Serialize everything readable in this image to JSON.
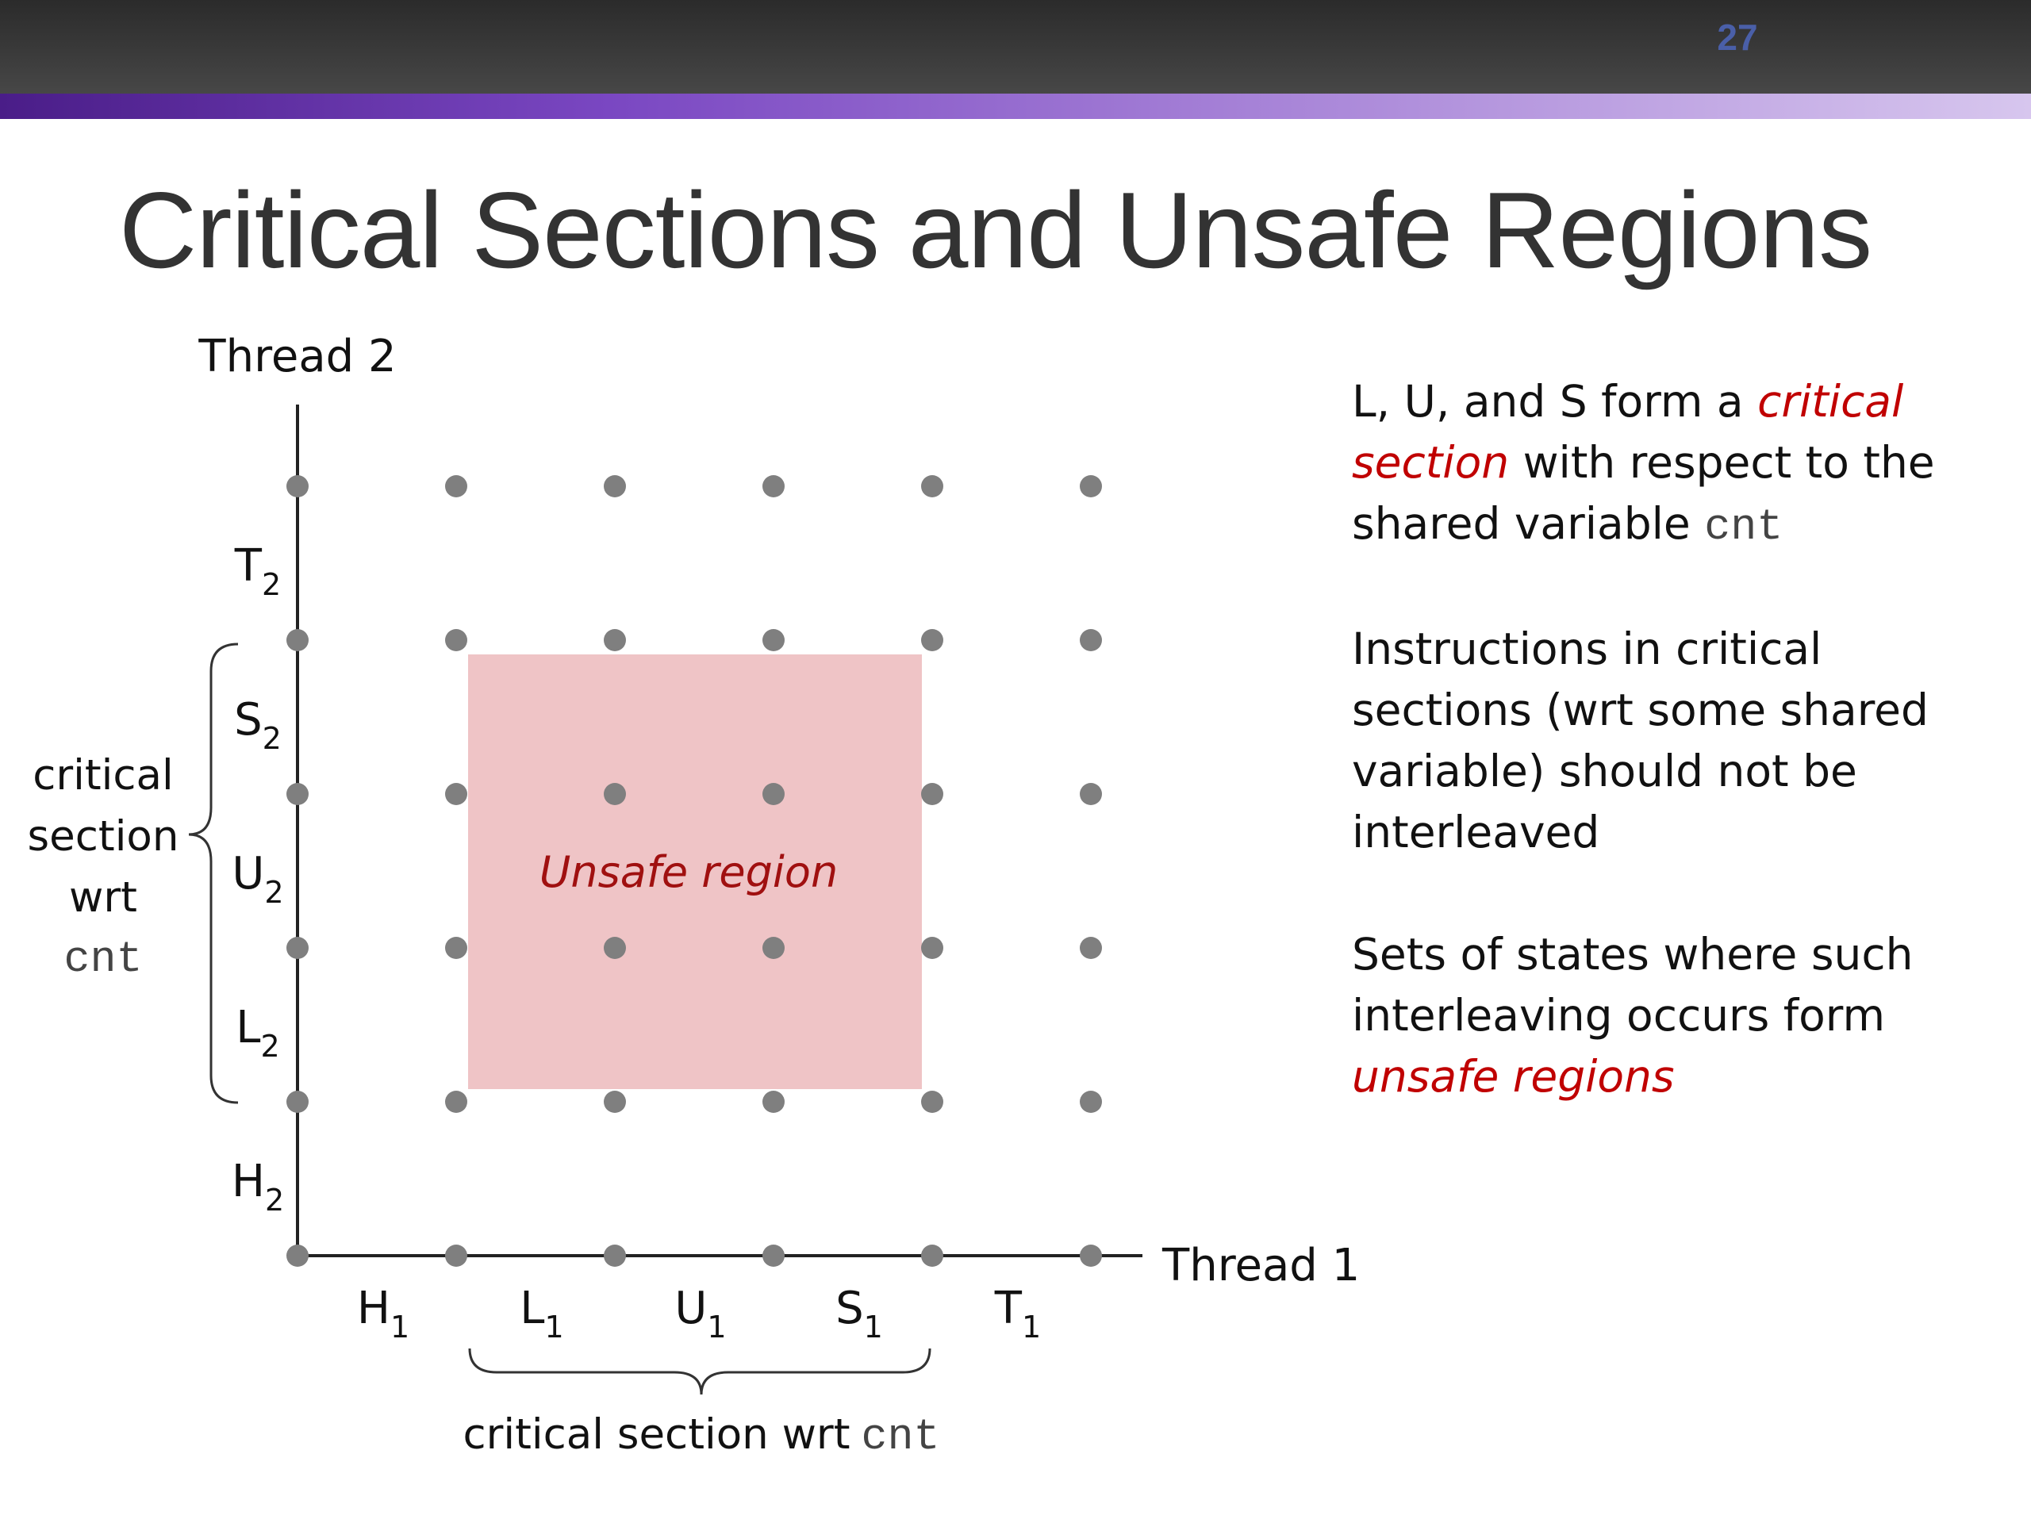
{
  "header": {
    "page_number": "27"
  },
  "title": "Critical Sections and Unsafe Regions",
  "diagram": {
    "y_axis_label": "Thread 2",
    "x_axis_label": "Thread 1",
    "x_segments": [
      {
        "base": "H",
        "sub": "1"
      },
      {
        "base": "L",
        "sub": "1"
      },
      {
        "base": "U",
        "sub": "1"
      },
      {
        "base": "S",
        "sub": "1"
      },
      {
        "base": "T",
        "sub": "1"
      }
    ],
    "y_segments": [
      {
        "base": "H",
        "sub": "2"
      },
      {
        "base": "L",
        "sub": "2"
      },
      {
        "base": "U",
        "sub": "2"
      },
      {
        "base": "S",
        "sub": "2"
      },
      {
        "base": "T",
        "sub": "2"
      }
    ],
    "unsafe_region_label": "Unsafe region",
    "unsafe_region_color": "#efc4c6",
    "point_color": "#7f7f7f",
    "vertical_brace_label": {
      "line1": "critical",
      "line2": "section",
      "line3": "wrt",
      "code": "cnt"
    },
    "horizontal_brace_label": {
      "text": "critical section wrt",
      "code": "cnt"
    }
  },
  "bullets": [
    {
      "parts": [
        {
          "text": "L, U, and S form a ",
          "style": "normal"
        },
        {
          "text": "critical section",
          "style": "em"
        },
        {
          "text": " with respect to the shared variable ",
          "style": "normal"
        },
        {
          "text": "cnt",
          "style": "code"
        }
      ]
    },
    {
      "parts": [
        {
          "text": "Instructions in critical sections (wrt some shared variable) should not be interleaved",
          "style": "normal"
        }
      ]
    },
    {
      "parts": [
        {
          "text": "Sets of states where such interleaving occurs form ",
          "style": "normal"
        },
        {
          "text": "unsafe regions",
          "style": "em"
        }
      ]
    }
  ],
  "colors": {
    "emphasis": "#c00000",
    "title": "#333333",
    "accent": "#7a47c2"
  }
}
